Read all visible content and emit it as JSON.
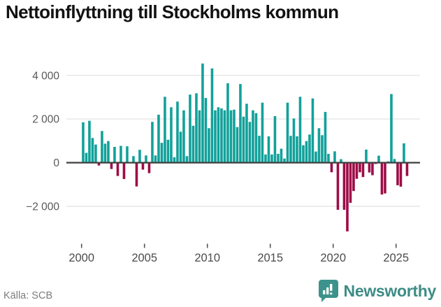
{
  "title": "Nettoinflyttning till Stockholms kommun",
  "footer": {
    "source": "Källa: SCB",
    "brand": "Newsworthy"
  },
  "chart_data": {
    "type": "bar",
    "title": "Nettoinflyttning till Stockholms kommun",
    "frequency": "quarterly",
    "start_year": 2000,
    "values": [
      1850,
      450,
      1920,
      1130,
      830,
      -130,
      1450,
      870,
      990,
      -290,
      725,
      -610,
      770,
      -750,
      750,
      30,
      300,
      -1090,
      590,
      -320,
      330,
      -480,
      1870,
      330,
      2200,
      910,
      3020,
      1050,
      2540,
      250,
      2800,
      1420,
      2400,
      300,
      3120,
      1690,
      3180,
      2400,
      4545,
      2965,
      1580,
      4320,
      2400,
      2540,
      2485,
      2400,
      3640,
      2400,
      2430,
      1630,
      3605,
      2110,
      2700,
      1870,
      2400,
      2270,
      1230,
      2750,
      375,
      1205,
      375,
      2135,
      405,
      640,
      190,
      2750,
      1230,
      2025,
      1205,
      3020,
      800,
      990,
      1290,
      2945,
      510,
      1580,
      1260,
      2325,
      405,
      -440,
      520,
      -2160,
      160,
      -2160,
      -3150,
      -1840,
      -1300,
      -740,
      -440,
      -660,
      600,
      -450,
      -575,
      -60,
      320,
      -1460,
      -1410,
      60,
      3145,
      170,
      -1035,
      -1100,
      885,
      -610
    ],
    "xticks": [
      {
        "value": 2000,
        "label": "2000"
      },
      {
        "value": 2005,
        "label": "2005"
      },
      {
        "value": 2010,
        "label": "2010"
      },
      {
        "value": 2015,
        "label": "2015"
      },
      {
        "value": 2020,
        "label": "2020"
      },
      {
        "value": 2025,
        "label": "2025"
      }
    ],
    "yticks": [
      {
        "value": 4000,
        "label": "4 000"
      },
      {
        "value": 2000,
        "label": "2 000"
      },
      {
        "value": 0,
        "label": "0"
      },
      {
        "value": -2000,
        "label": "−2 000"
      }
    ],
    "ylim": [
      -3400,
      4800
    ],
    "grid": true,
    "legend": "none",
    "colors": {
      "positive": "#12a19a",
      "negative": "#9e0c47",
      "zero_line": "#3f3f3f",
      "grid_line": "#e6e6e6",
      "tick_text": "#4c4c4c",
      "brand_teal": "#3d8c86"
    }
  }
}
